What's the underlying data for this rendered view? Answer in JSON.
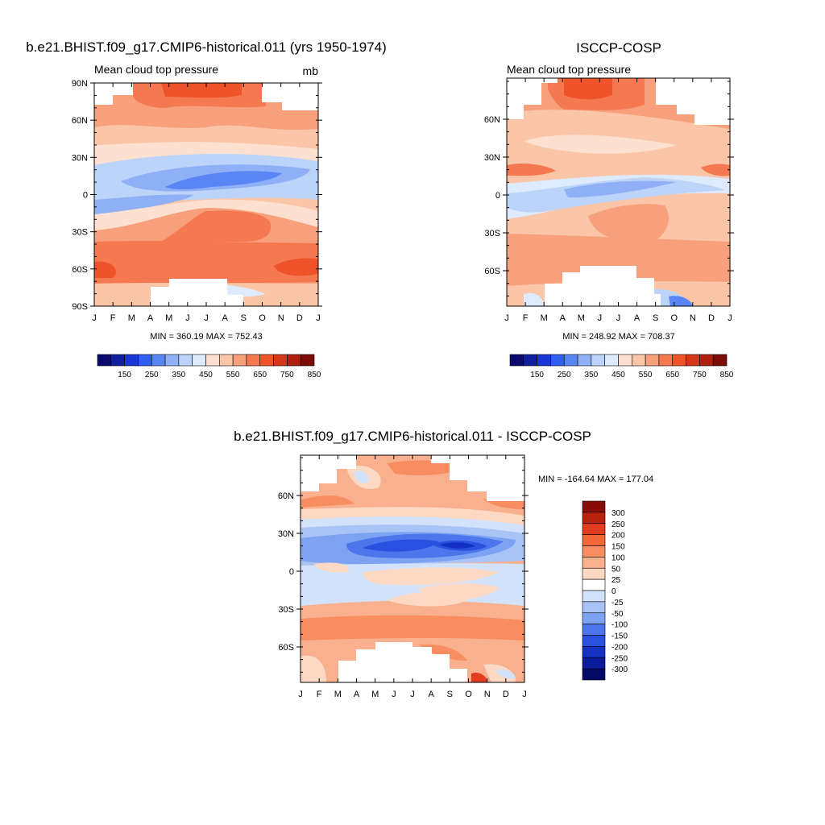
{
  "chart_data": [
    {
      "type": "heatmap",
      "title": "b.e21.BHIST.f09_g17.CMIP6-historical.011 (yrs 1950-1974)",
      "subtitle": "Mean cloud top pressure",
      "units": "mb",
      "x": [
        "J",
        "F",
        "M",
        "A",
        "M",
        "J",
        "J",
        "A",
        "S",
        "O",
        "N",
        "D",
        "J"
      ],
      "y": [
        "90N",
        "60N",
        "30N",
        "0",
        "30S",
        "60S",
        "90S"
      ],
      "stats": "MIN = 360.19 MAX = 752.43",
      "colorbar": {
        "labels": [
          "150",
          "250",
          "350",
          "450",
          "550",
          "650",
          "750",
          "850"
        ],
        "colors": [
          "#0a0a6e",
          "#0f1fa0",
          "#1b36d8",
          "#2f5ef0",
          "#5a86f5",
          "#8fb0f7",
          "#bcd3fa",
          "#deeafd",
          "#fde0cf",
          "#fbc5a8",
          "#f8a07c",
          "#f47850",
          "#ee5329",
          "#d5371a",
          "#b0200e",
          "#7d0c06"
        ]
      }
    },
    {
      "type": "heatmap",
      "title": "ISCCP-COSP",
      "subtitle": "Mean cloud top pressure",
      "x": [
        "J",
        "F",
        "M",
        "A",
        "M",
        "J",
        "J",
        "A",
        "S",
        "O",
        "N",
        "D",
        "J"
      ],
      "y": [
        "60N",
        "30N",
        "0",
        "30S",
        "60S"
      ],
      "stats": "MIN = 248.92 MAX = 708.37",
      "colorbar": {
        "labels": [
          "150",
          "250",
          "350",
          "450",
          "550",
          "650",
          "750",
          "850"
        ],
        "colors": [
          "#0a0a6e",
          "#0f1fa0",
          "#1b36d8",
          "#2f5ef0",
          "#5a86f5",
          "#8fb0f7",
          "#bcd3fa",
          "#deeafd",
          "#fde0cf",
          "#fbc5a8",
          "#f8a07c",
          "#f47850",
          "#ee5329",
          "#d5371a",
          "#b0200e",
          "#7d0c06"
        ]
      }
    },
    {
      "type": "heatmap",
      "title": "b.e21.BHIST.f09_g17.CMIP6-historical.011 - ISCCP-COSP",
      "x": [
        "J",
        "F",
        "M",
        "A",
        "M",
        "J",
        "J",
        "A",
        "S",
        "O",
        "N",
        "D",
        "J"
      ],
      "y": [
        "60N",
        "30N",
        "0",
        "30S",
        "60S"
      ],
      "stats": "MIN = -164.64 MAX = 177.04",
      "colorbar": {
        "labels": [
          "300",
          "250",
          "200",
          "150",
          "100",
          "50",
          "25",
          "0",
          "-25",
          "-50",
          "-100",
          "-150",
          "-200",
          "-250",
          "-300"
        ],
        "colors": [
          "#8a0c0a",
          "#b8220f",
          "#e43c1e",
          "#f26638",
          "#f78d60",
          "#f9b08e",
          "#fdd9c4",
          "#ffffff",
          "#d3e2fb",
          "#a9c3f7",
          "#7da2f2",
          "#4d76ec",
          "#2a50e0",
          "#1431c4",
          "#0b1b9c",
          "#050a66"
        ]
      }
    }
  ]
}
